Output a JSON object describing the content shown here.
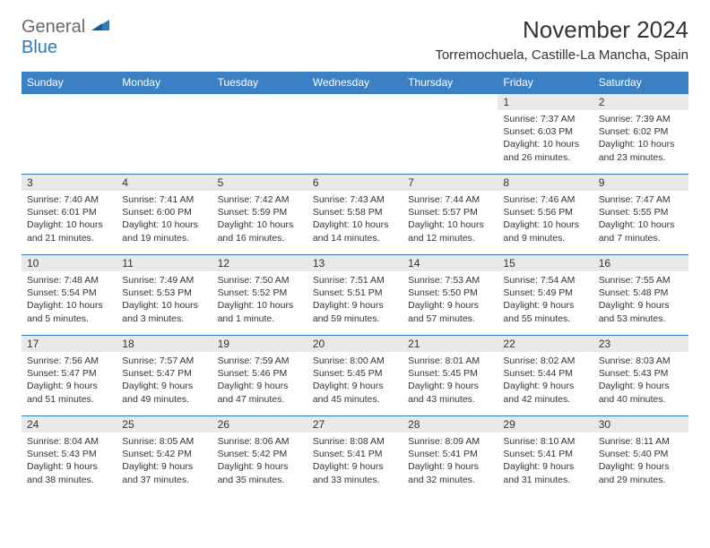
{
  "logo": {
    "general": "General",
    "blue": "Blue"
  },
  "title": "November 2024",
  "location": "Torremochuela, Castille-La Mancha, Spain",
  "colors": {
    "header_bg": "#3a80c3",
    "row_divider": "#2f79bd",
    "daynum_bg": "#e9e9e9",
    "text": "#333333",
    "logo_gray": "#6b6b6b",
    "logo_blue": "#2f79bd"
  },
  "day_headers": [
    "Sunday",
    "Monday",
    "Tuesday",
    "Wednesday",
    "Thursday",
    "Friday",
    "Saturday"
  ],
  "weeks": [
    [
      {
        "n": "",
        "sunrise": "",
        "sunset": "",
        "daylight": ""
      },
      {
        "n": "",
        "sunrise": "",
        "sunset": "",
        "daylight": ""
      },
      {
        "n": "",
        "sunrise": "",
        "sunset": "",
        "daylight": ""
      },
      {
        "n": "",
        "sunrise": "",
        "sunset": "",
        "daylight": ""
      },
      {
        "n": "",
        "sunrise": "",
        "sunset": "",
        "daylight": ""
      },
      {
        "n": "1",
        "sunrise": "Sunrise: 7:37 AM",
        "sunset": "Sunset: 6:03 PM",
        "daylight": "Daylight: 10 hours and 26 minutes."
      },
      {
        "n": "2",
        "sunrise": "Sunrise: 7:39 AM",
        "sunset": "Sunset: 6:02 PM",
        "daylight": "Daylight: 10 hours and 23 minutes."
      }
    ],
    [
      {
        "n": "3",
        "sunrise": "Sunrise: 7:40 AM",
        "sunset": "Sunset: 6:01 PM",
        "daylight": "Daylight: 10 hours and 21 minutes."
      },
      {
        "n": "4",
        "sunrise": "Sunrise: 7:41 AM",
        "sunset": "Sunset: 6:00 PM",
        "daylight": "Daylight: 10 hours and 19 minutes."
      },
      {
        "n": "5",
        "sunrise": "Sunrise: 7:42 AM",
        "sunset": "Sunset: 5:59 PM",
        "daylight": "Daylight: 10 hours and 16 minutes."
      },
      {
        "n": "6",
        "sunrise": "Sunrise: 7:43 AM",
        "sunset": "Sunset: 5:58 PM",
        "daylight": "Daylight: 10 hours and 14 minutes."
      },
      {
        "n": "7",
        "sunrise": "Sunrise: 7:44 AM",
        "sunset": "Sunset: 5:57 PM",
        "daylight": "Daylight: 10 hours and 12 minutes."
      },
      {
        "n": "8",
        "sunrise": "Sunrise: 7:46 AM",
        "sunset": "Sunset: 5:56 PM",
        "daylight": "Daylight: 10 hours and 9 minutes."
      },
      {
        "n": "9",
        "sunrise": "Sunrise: 7:47 AM",
        "sunset": "Sunset: 5:55 PM",
        "daylight": "Daylight: 10 hours and 7 minutes."
      }
    ],
    [
      {
        "n": "10",
        "sunrise": "Sunrise: 7:48 AM",
        "sunset": "Sunset: 5:54 PM",
        "daylight": "Daylight: 10 hours and 5 minutes."
      },
      {
        "n": "11",
        "sunrise": "Sunrise: 7:49 AM",
        "sunset": "Sunset: 5:53 PM",
        "daylight": "Daylight: 10 hours and 3 minutes."
      },
      {
        "n": "12",
        "sunrise": "Sunrise: 7:50 AM",
        "sunset": "Sunset: 5:52 PM",
        "daylight": "Daylight: 10 hours and 1 minute."
      },
      {
        "n": "13",
        "sunrise": "Sunrise: 7:51 AM",
        "sunset": "Sunset: 5:51 PM",
        "daylight": "Daylight: 9 hours and 59 minutes."
      },
      {
        "n": "14",
        "sunrise": "Sunrise: 7:53 AM",
        "sunset": "Sunset: 5:50 PM",
        "daylight": "Daylight: 9 hours and 57 minutes."
      },
      {
        "n": "15",
        "sunrise": "Sunrise: 7:54 AM",
        "sunset": "Sunset: 5:49 PM",
        "daylight": "Daylight: 9 hours and 55 minutes."
      },
      {
        "n": "16",
        "sunrise": "Sunrise: 7:55 AM",
        "sunset": "Sunset: 5:48 PM",
        "daylight": "Daylight: 9 hours and 53 minutes."
      }
    ],
    [
      {
        "n": "17",
        "sunrise": "Sunrise: 7:56 AM",
        "sunset": "Sunset: 5:47 PM",
        "daylight": "Daylight: 9 hours and 51 minutes."
      },
      {
        "n": "18",
        "sunrise": "Sunrise: 7:57 AM",
        "sunset": "Sunset: 5:47 PM",
        "daylight": "Daylight: 9 hours and 49 minutes."
      },
      {
        "n": "19",
        "sunrise": "Sunrise: 7:59 AM",
        "sunset": "Sunset: 5:46 PM",
        "daylight": "Daylight: 9 hours and 47 minutes."
      },
      {
        "n": "20",
        "sunrise": "Sunrise: 8:00 AM",
        "sunset": "Sunset: 5:45 PM",
        "daylight": "Daylight: 9 hours and 45 minutes."
      },
      {
        "n": "21",
        "sunrise": "Sunrise: 8:01 AM",
        "sunset": "Sunset: 5:45 PM",
        "daylight": "Daylight: 9 hours and 43 minutes."
      },
      {
        "n": "22",
        "sunrise": "Sunrise: 8:02 AM",
        "sunset": "Sunset: 5:44 PM",
        "daylight": "Daylight: 9 hours and 42 minutes."
      },
      {
        "n": "23",
        "sunrise": "Sunrise: 8:03 AM",
        "sunset": "Sunset: 5:43 PM",
        "daylight": "Daylight: 9 hours and 40 minutes."
      }
    ],
    [
      {
        "n": "24",
        "sunrise": "Sunrise: 8:04 AM",
        "sunset": "Sunset: 5:43 PM",
        "daylight": "Daylight: 9 hours and 38 minutes."
      },
      {
        "n": "25",
        "sunrise": "Sunrise: 8:05 AM",
        "sunset": "Sunset: 5:42 PM",
        "daylight": "Daylight: 9 hours and 37 minutes."
      },
      {
        "n": "26",
        "sunrise": "Sunrise: 8:06 AM",
        "sunset": "Sunset: 5:42 PM",
        "daylight": "Daylight: 9 hours and 35 minutes."
      },
      {
        "n": "27",
        "sunrise": "Sunrise: 8:08 AM",
        "sunset": "Sunset: 5:41 PM",
        "daylight": "Daylight: 9 hours and 33 minutes."
      },
      {
        "n": "28",
        "sunrise": "Sunrise: 8:09 AM",
        "sunset": "Sunset: 5:41 PM",
        "daylight": "Daylight: 9 hours and 32 minutes."
      },
      {
        "n": "29",
        "sunrise": "Sunrise: 8:10 AM",
        "sunset": "Sunset: 5:41 PM",
        "daylight": "Daylight: 9 hours and 31 minutes."
      },
      {
        "n": "30",
        "sunrise": "Sunrise: 8:11 AM",
        "sunset": "Sunset: 5:40 PM",
        "daylight": "Daylight: 9 hours and 29 minutes."
      }
    ]
  ]
}
